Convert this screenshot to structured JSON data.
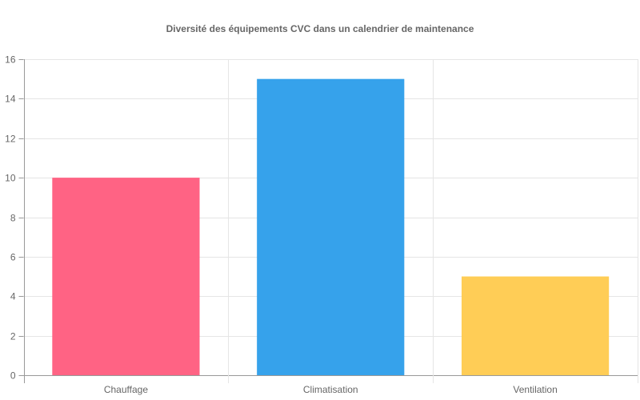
{
  "chart_data": {
    "type": "bar",
    "title": "Diversité des équipements CVC dans un calendrier de maintenance",
    "categories": [
      "Chauffage",
      "Climatisation",
      "Ventilation"
    ],
    "values": [
      10,
      15,
      5
    ],
    "colors": [
      "#FF6384",
      "#36A2EB",
      "#FFCD56"
    ],
    "xlabel": "",
    "ylabel": "",
    "ylim": [
      0,
      16
    ],
    "yticks": [
      0,
      2,
      4,
      6,
      8,
      10,
      12,
      14,
      16
    ],
    "grid": true,
    "legend": "none"
  }
}
